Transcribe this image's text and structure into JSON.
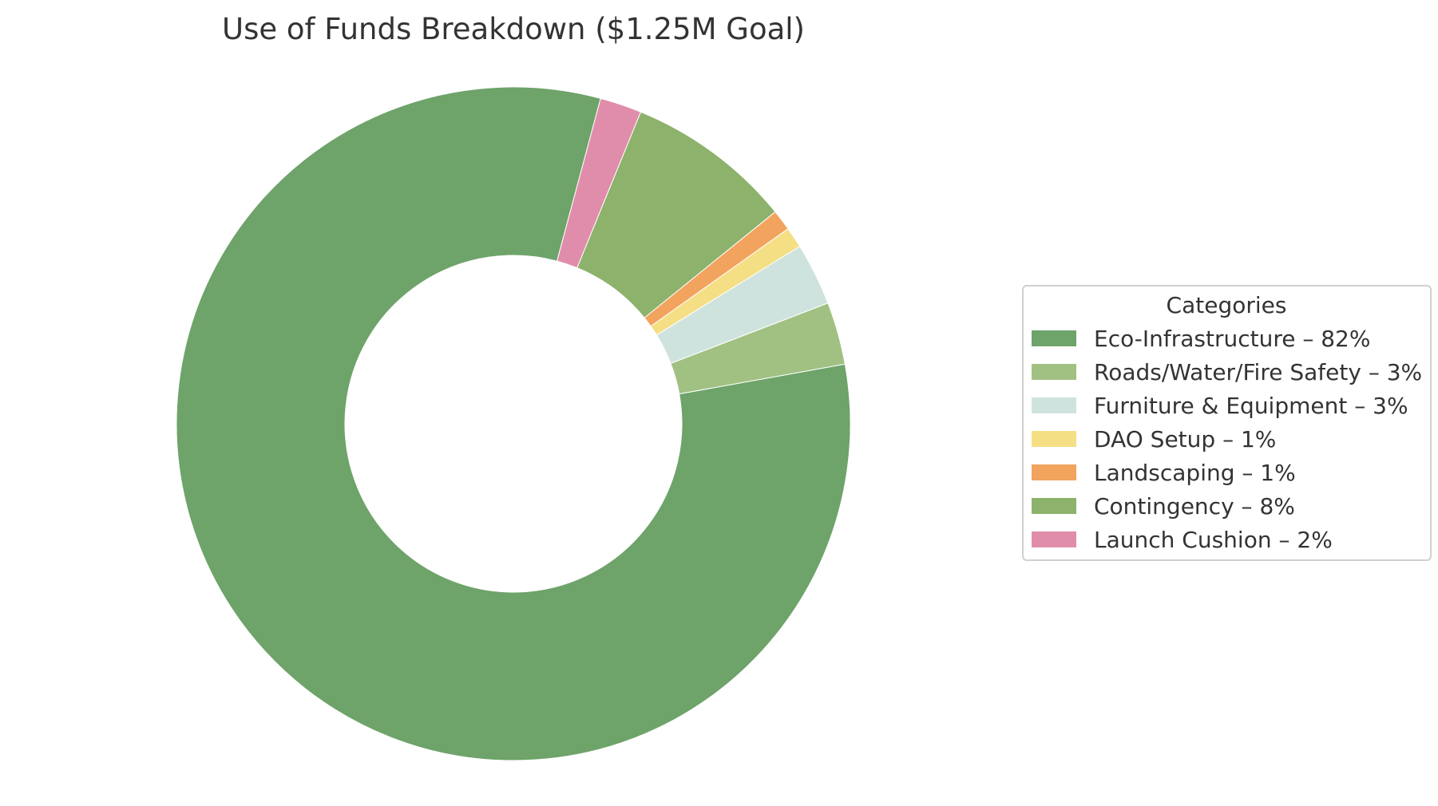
{
  "chart_data": {
    "type": "pie",
    "title": "Use of Funds Breakdown ($1.25M Goal)",
    "donut": true,
    "legend_title": "Categories",
    "legend_position": "right",
    "categories": [
      "Eco-Infrastructure – 82%",
      "Roads/Water/Fire Safety – 3%",
      "Furniture & Equipment – 3%",
      "DAO Setup – 1%",
      "Landscaping – 1%",
      "Contingency – 8%",
      "Launch Cushion – 2%"
    ],
    "values": [
      82,
      3,
      3,
      1,
      1,
      8,
      2
    ],
    "colors": [
      "#6ea36a",
      "#a1c183",
      "#cfe3de",
      "#f5df85",
      "#f2a35e",
      "#8db26b",
      "#e08dab"
    ]
  }
}
